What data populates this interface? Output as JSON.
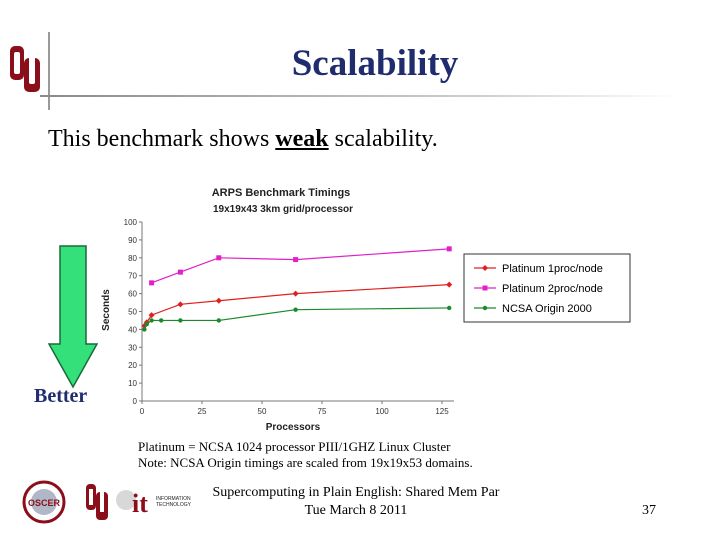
{
  "slide": {
    "title": "Scalability",
    "intro_before": "This benchmark shows ",
    "intro_emphasis": "weak",
    "intro_after": " scalability.",
    "better_label": "Better",
    "note_line1": "Platinum = NCSA 1024 processor PIII/1GHZ Linux Cluster",
    "note_line2": "Note: NCSA Origin timings are scaled from 19x19x53 domains.",
    "footer_line1": "Supercomputing in Plain English: Shared Mem Par",
    "footer_line2": "Tue March 8 2011",
    "page_number": "37",
    "logo_text_it": "it",
    "logo_text_info1": "INFORMATION",
    "logo_text_info2": "TECHNOLOGY",
    "logo_text_oscer": "OSCER"
  },
  "colors": {
    "title": "#1f2d6e",
    "arrow_fill": "#33e07a",
    "logo_red": "#8b0f1a"
  },
  "chart_data": {
    "type": "line",
    "title": "ARPS Benchmark Timings",
    "subtitle": "19x19x43 3km grid/processor",
    "xlabel": "Processors",
    "ylabel": "Seconds",
    "xlim": [
      0,
      130
    ],
    "ylim": [
      0,
      100
    ],
    "x_ticks": [
      "0",
      "25",
      "50",
      "75",
      "100",
      "125"
    ],
    "y_ticks": [
      "0",
      "10",
      "20",
      "30",
      "40",
      "50",
      "60",
      "70",
      "80",
      "90",
      "100"
    ],
    "legend_position": "right",
    "grid": false,
    "series": [
      {
        "name": "Platinum 1proc/node",
        "color": "#e02020",
        "marker": "diamond",
        "x": [
          1,
          2,
          4,
          16,
          32,
          64,
          128
        ],
        "y": [
          42,
          44,
          48,
          54,
          56,
          60,
          65
        ]
      },
      {
        "name": "Platinum 2proc/node",
        "color": "#e020c8",
        "marker": "square",
        "x": [
          4,
          16,
          32,
          64,
          128
        ],
        "y": [
          66,
          72,
          80,
          79,
          85
        ]
      },
      {
        "name": "NCSA Origin 2000",
        "color": "#1a8a2a",
        "marker": "circle",
        "x": [
          1,
          2,
          4,
          8,
          16,
          32,
          64,
          128
        ],
        "y": [
          40,
          43,
          45,
          45,
          45,
          45,
          51,
          52
        ]
      }
    ]
  }
}
